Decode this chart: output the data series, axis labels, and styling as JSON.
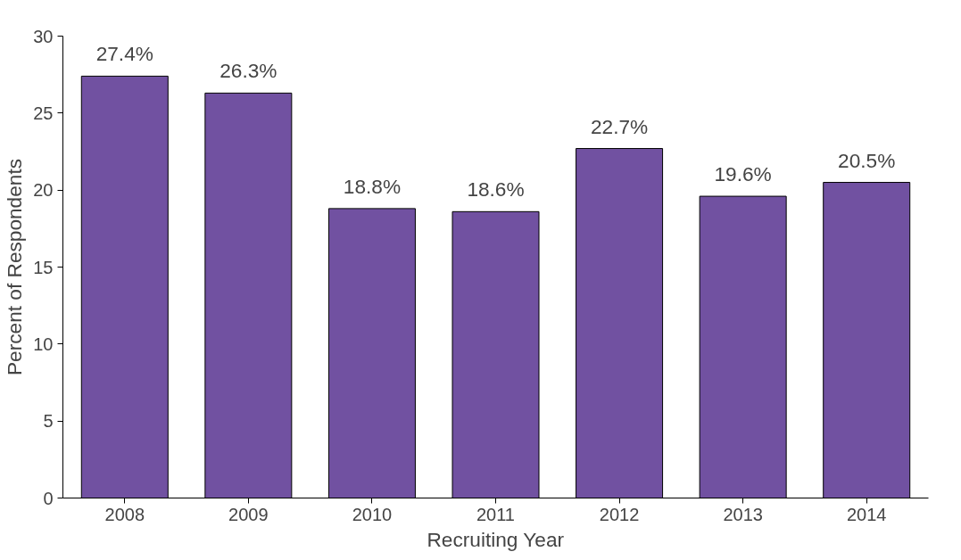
{
  "chart_data": {
    "type": "bar",
    "xlabel": "Recruiting Year",
    "ylabel": "Percent of Respondents",
    "categories": [
      "2008",
      "2009",
      "2010",
      "2011",
      "2012",
      "2013",
      "2014"
    ],
    "values": [
      27.4,
      26.3,
      18.8,
      18.6,
      22.7,
      19.6,
      20.5
    ],
    "value_labels": [
      "27.4%",
      "26.3%",
      "18.8%",
      "18.6%",
      "22.7%",
      "19.6%",
      "20.5%"
    ],
    "color": "#7151a1",
    "ylim": [
      0,
      30
    ],
    "yticks": [
      0,
      5,
      10,
      15,
      20,
      25,
      30
    ],
    "grid": false
  }
}
